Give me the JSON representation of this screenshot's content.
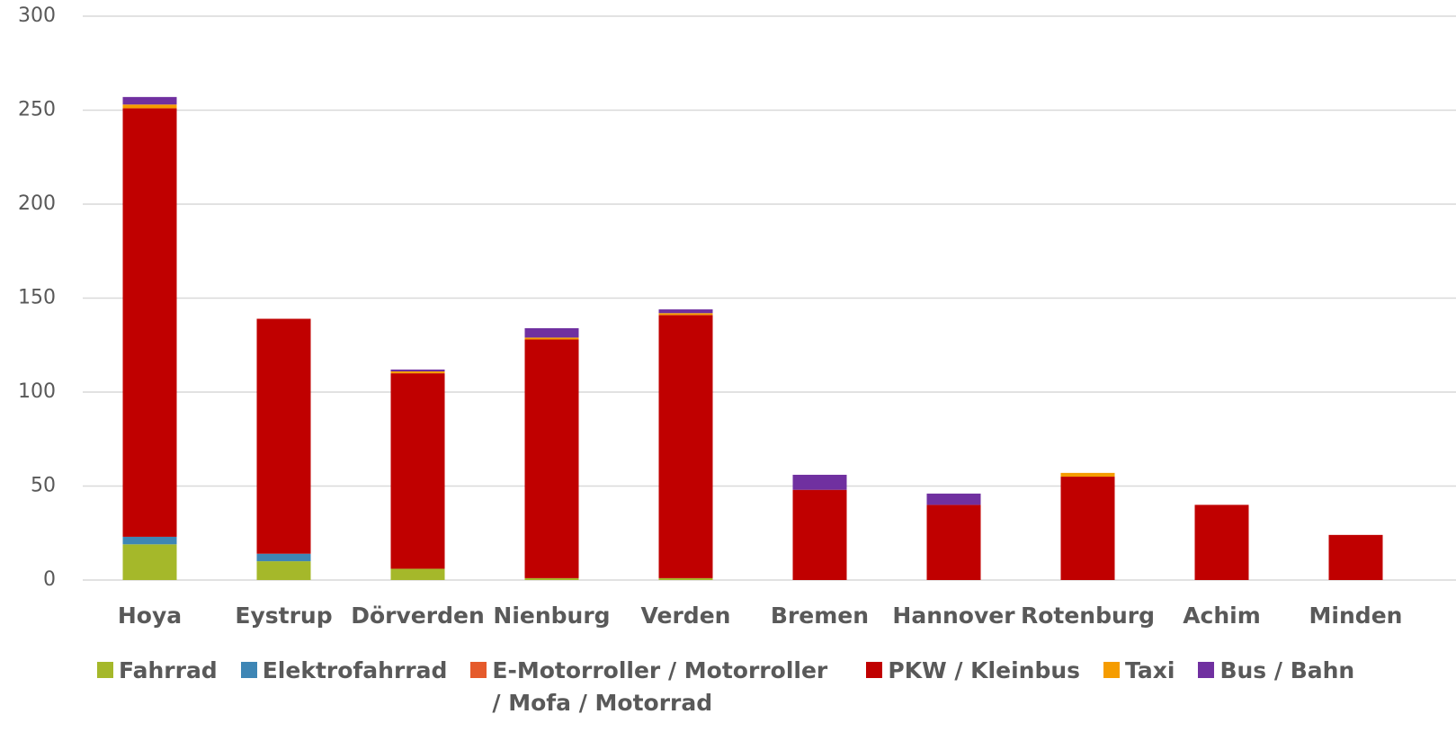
{
  "chart_data": {
    "type": "stacked_bar",
    "categories": [
      "Hoya",
      "Eystrup",
      "Dörverden",
      "Nienburg",
      "Verden",
      "Bremen",
      "Hannover",
      "Rotenburg",
      "Achim",
      "Minden"
    ],
    "series": [
      {
        "name": "Fahrrad",
        "color": "#a5b82a",
        "values": [
          19,
          10,
          6,
          1,
          1,
          0,
          0,
          0,
          0,
          0
        ]
      },
      {
        "name": "Elektrofahrrad",
        "color": "#3e86b5",
        "values": [
          4,
          4,
          0,
          0,
          0,
          0,
          0,
          0,
          0,
          0
        ]
      },
      {
        "name": "E-Motorroller / Motorroller / Mofa / Motorrad",
        "color": "#e55a2b",
        "values": [
          0,
          0,
          0,
          0,
          0,
          0,
          0,
          0,
          0,
          0
        ]
      },
      {
        "name": "PKW / Kleinbus",
        "color": "#c00000",
        "values": [
          228,
          125,
          104,
          127,
          140,
          48,
          40,
          55,
          40,
          24
        ]
      },
      {
        "name": "Taxi",
        "color": "#f59c00",
        "values": [
          2,
          0,
          1,
          1,
          1,
          0,
          0,
          2,
          0,
          0
        ]
      },
      {
        "name": "Bus / Bahn",
        "color": "#7030a0",
        "values": [
          4,
          0,
          1,
          5,
          2,
          8,
          6,
          0,
          0,
          0
        ]
      }
    ],
    "ylim": [
      0,
      300
    ],
    "yticks": [
      0,
      50,
      100,
      150,
      200,
      250,
      300
    ],
    "grid": true,
    "legend": "bottom"
  }
}
